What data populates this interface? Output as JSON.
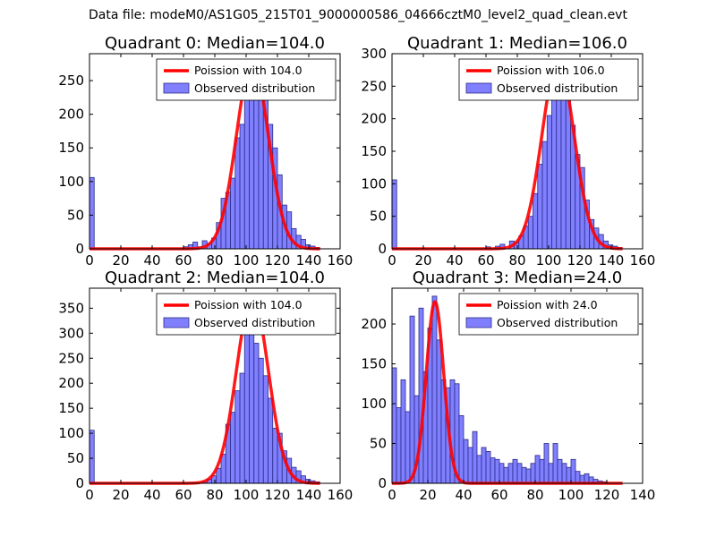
{
  "figure": {
    "suptitle": "Data file: modeM0/AS1G05_215T01_9000000586_04666cztM0_level2_quad_clean.evt"
  },
  "colors": {
    "bar_fill": "#8080ff",
    "bar_edge": "#2a2a8a",
    "curve": "#ff0000",
    "axes": "#000000"
  },
  "chart_data": [
    {
      "type": "bar",
      "title": "Quadrant 0: Median=104.0",
      "xlim": [
        0,
        160
      ],
      "ylim": [
        0,
        290
      ],
      "xticks": [
        0,
        20,
        40,
        60,
        80,
        100,
        120,
        140,
        160
      ],
      "yticks": [
        0,
        50,
        100,
        150,
        200,
        250
      ],
      "bin_width": 3,
      "legend": {
        "location": "top-right",
        "line_label": "Poission with 104.0",
        "bar_label": "Observed distribution"
      },
      "poisson": {
        "mean": 104,
        "peak": 278
      },
      "bins": [
        {
          "x": 0,
          "y": 106
        },
        {
          "x": 60,
          "y": 3
        },
        {
          "x": 63,
          "y": 6
        },
        {
          "x": 66,
          "y": 10
        },
        {
          "x": 69,
          "y": 3
        },
        {
          "x": 72,
          "y": 12
        },
        {
          "x": 75,
          "y": 8
        },
        {
          "x": 78,
          "y": 16
        },
        {
          "x": 81,
          "y": 39
        },
        {
          "x": 84,
          "y": 75
        },
        {
          "x": 87,
          "y": 84
        },
        {
          "x": 90,
          "y": 105
        },
        {
          "x": 93,
          "y": 165
        },
        {
          "x": 96,
          "y": 185
        },
        {
          "x": 99,
          "y": 222
        },
        {
          "x": 102,
          "y": 255
        },
        {
          "x": 105,
          "y": 270
        },
        {
          "x": 108,
          "y": 240
        },
        {
          "x": 111,
          "y": 225
        },
        {
          "x": 114,
          "y": 185
        },
        {
          "x": 117,
          "y": 150
        },
        {
          "x": 120,
          "y": 110
        },
        {
          "x": 123,
          "y": 65
        },
        {
          "x": 126,
          "y": 55
        },
        {
          "x": 129,
          "y": 30
        },
        {
          "x": 132,
          "y": 20
        },
        {
          "x": 135,
          "y": 14
        },
        {
          "x": 138,
          "y": 6
        },
        {
          "x": 141,
          "y": 4
        },
        {
          "x": 144,
          "y": 2
        }
      ]
    },
    {
      "type": "bar",
      "title": "Quadrant 1: Median=106.0",
      "xlim": [
        0,
        160
      ],
      "ylim": [
        0,
        300
      ],
      "xticks": [
        0,
        20,
        40,
        60,
        80,
        100,
        120,
        140,
        160
      ],
      "yticks": [
        0,
        50,
        100,
        150,
        200,
        250,
        300
      ],
      "bin_width": 3,
      "legend": {
        "location": "top-right",
        "line_label": "Poission with 106.0",
        "bar_label": "Observed distribution"
      },
      "poisson": {
        "mean": 106,
        "peak": 288
      },
      "bins": [
        {
          "x": 0,
          "y": 106
        },
        {
          "x": 60,
          "y": 3
        },
        {
          "x": 66,
          "y": 4
        },
        {
          "x": 69,
          "y": 7
        },
        {
          "x": 75,
          "y": 12
        },
        {
          "x": 78,
          "y": 10
        },
        {
          "x": 81,
          "y": 20
        },
        {
          "x": 84,
          "y": 35
        },
        {
          "x": 87,
          "y": 50
        },
        {
          "x": 90,
          "y": 85
        },
        {
          "x": 93,
          "y": 130
        },
        {
          "x": 96,
          "y": 165
        },
        {
          "x": 99,
          "y": 205
        },
        {
          "x": 102,
          "y": 235
        },
        {
          "x": 105,
          "y": 245
        },
        {
          "x": 108,
          "y": 275
        },
        {
          "x": 111,
          "y": 245
        },
        {
          "x": 114,
          "y": 190
        },
        {
          "x": 117,
          "y": 145
        },
        {
          "x": 120,
          "y": 125
        },
        {
          "x": 123,
          "y": 75
        },
        {
          "x": 126,
          "y": 45
        },
        {
          "x": 129,
          "y": 32
        },
        {
          "x": 132,
          "y": 22
        },
        {
          "x": 135,
          "y": 12
        },
        {
          "x": 138,
          "y": 6
        },
        {
          "x": 141,
          "y": 4
        },
        {
          "x": 144,
          "y": 2
        }
      ]
    },
    {
      "type": "bar",
      "title": "Quadrant 2: Median=104.0",
      "xlim": [
        0,
        160
      ],
      "ylim": [
        0,
        390
      ],
      "xticks": [
        0,
        20,
        40,
        60,
        80,
        100,
        120,
        140,
        160
      ],
      "yticks": [
        0,
        50,
        100,
        150,
        200,
        250,
        300,
        350
      ],
      "bin_width": 3,
      "legend": {
        "location": "top-right",
        "line_label": "Poission with 104.0",
        "bar_label": "Observed distribution"
      },
      "poisson": {
        "mean": 104,
        "peak": 372
      },
      "bins": [
        {
          "x": 0,
          "y": 106
        },
        {
          "x": 72,
          "y": 3
        },
        {
          "x": 75,
          "y": 8
        },
        {
          "x": 78,
          "y": 15
        },
        {
          "x": 81,
          "y": 30
        },
        {
          "x": 84,
          "y": 58
        },
        {
          "x": 87,
          "y": 118
        },
        {
          "x": 90,
          "y": 142
        },
        {
          "x": 93,
          "y": 185
        },
        {
          "x": 96,
          "y": 220
        },
        {
          "x": 99,
          "y": 300
        },
        {
          "x": 102,
          "y": 345
        },
        {
          "x": 105,
          "y": 280
        },
        {
          "x": 108,
          "y": 250
        },
        {
          "x": 111,
          "y": 215
        },
        {
          "x": 114,
          "y": 170
        },
        {
          "x": 117,
          "y": 110
        },
        {
          "x": 120,
          "y": 100
        },
        {
          "x": 123,
          "y": 65
        },
        {
          "x": 126,
          "y": 50
        },
        {
          "x": 129,
          "y": 32
        },
        {
          "x": 132,
          "y": 25
        },
        {
          "x": 135,
          "y": 15
        },
        {
          "x": 138,
          "y": 8
        },
        {
          "x": 141,
          "y": 5
        },
        {
          "x": 144,
          "y": 3
        }
      ]
    },
    {
      "type": "bar",
      "title": "Quadrant 3: Median=24.0",
      "xlim": [
        0,
        140
      ],
      "ylim": [
        0,
        245
      ],
      "xticks": [
        0,
        20,
        40,
        60,
        80,
        100,
        120,
        140
      ],
      "yticks": [
        0,
        50,
        100,
        150,
        200
      ],
      "bin_width": 2.5,
      "legend": {
        "location": "top-right",
        "line_label": "Poission with 24.0",
        "bar_label": "Observed distribution"
      },
      "poisson": {
        "mean": 24,
        "peak": 228
      },
      "bins": [
        {
          "x": 0,
          "y": 145
        },
        {
          "x": 2.5,
          "y": 95
        },
        {
          "x": 5,
          "y": 130
        },
        {
          "x": 7.5,
          "y": 90
        },
        {
          "x": 10,
          "y": 210
        },
        {
          "x": 12.5,
          "y": 110
        },
        {
          "x": 15,
          "y": 220
        },
        {
          "x": 17.5,
          "y": 140
        },
        {
          "x": 20,
          "y": 195
        },
        {
          "x": 22.5,
          "y": 235
        },
        {
          "x": 25,
          "y": 180
        },
        {
          "x": 27.5,
          "y": 130
        },
        {
          "x": 30,
          "y": 120
        },
        {
          "x": 32.5,
          "y": 130
        },
        {
          "x": 35,
          "y": 125
        },
        {
          "x": 37.5,
          "y": 85
        },
        {
          "x": 40,
          "y": 55
        },
        {
          "x": 42.5,
          "y": 45
        },
        {
          "x": 45,
          "y": 65
        },
        {
          "x": 47.5,
          "y": 35
        },
        {
          "x": 50,
          "y": 45
        },
        {
          "x": 52.5,
          "y": 40
        },
        {
          "x": 55,
          "y": 32
        },
        {
          "x": 57.5,
          "y": 30
        },
        {
          "x": 60,
          "y": 25
        },
        {
          "x": 62.5,
          "y": 20
        },
        {
          "x": 65,
          "y": 25
        },
        {
          "x": 67.5,
          "y": 30
        },
        {
          "x": 70,
          "y": 25
        },
        {
          "x": 72.5,
          "y": 20
        },
        {
          "x": 75,
          "y": 18
        },
        {
          "x": 77.5,
          "y": 25
        },
        {
          "x": 80,
          "y": 35
        },
        {
          "x": 82.5,
          "y": 30
        },
        {
          "x": 85,
          "y": 50
        },
        {
          "x": 87.5,
          "y": 25
        },
        {
          "x": 90,
          "y": 50
        },
        {
          "x": 92.5,
          "y": 30
        },
        {
          "x": 95,
          "y": 25
        },
        {
          "x": 97.5,
          "y": 20
        },
        {
          "x": 100,
          "y": 30
        },
        {
          "x": 102.5,
          "y": 15
        },
        {
          "x": 105,
          "y": 10
        },
        {
          "x": 107.5,
          "y": 12
        },
        {
          "x": 110,
          "y": 8
        },
        {
          "x": 112.5,
          "y": 5
        },
        {
          "x": 115,
          "y": 3
        },
        {
          "x": 117.5,
          "y": 2
        }
      ]
    }
  ]
}
